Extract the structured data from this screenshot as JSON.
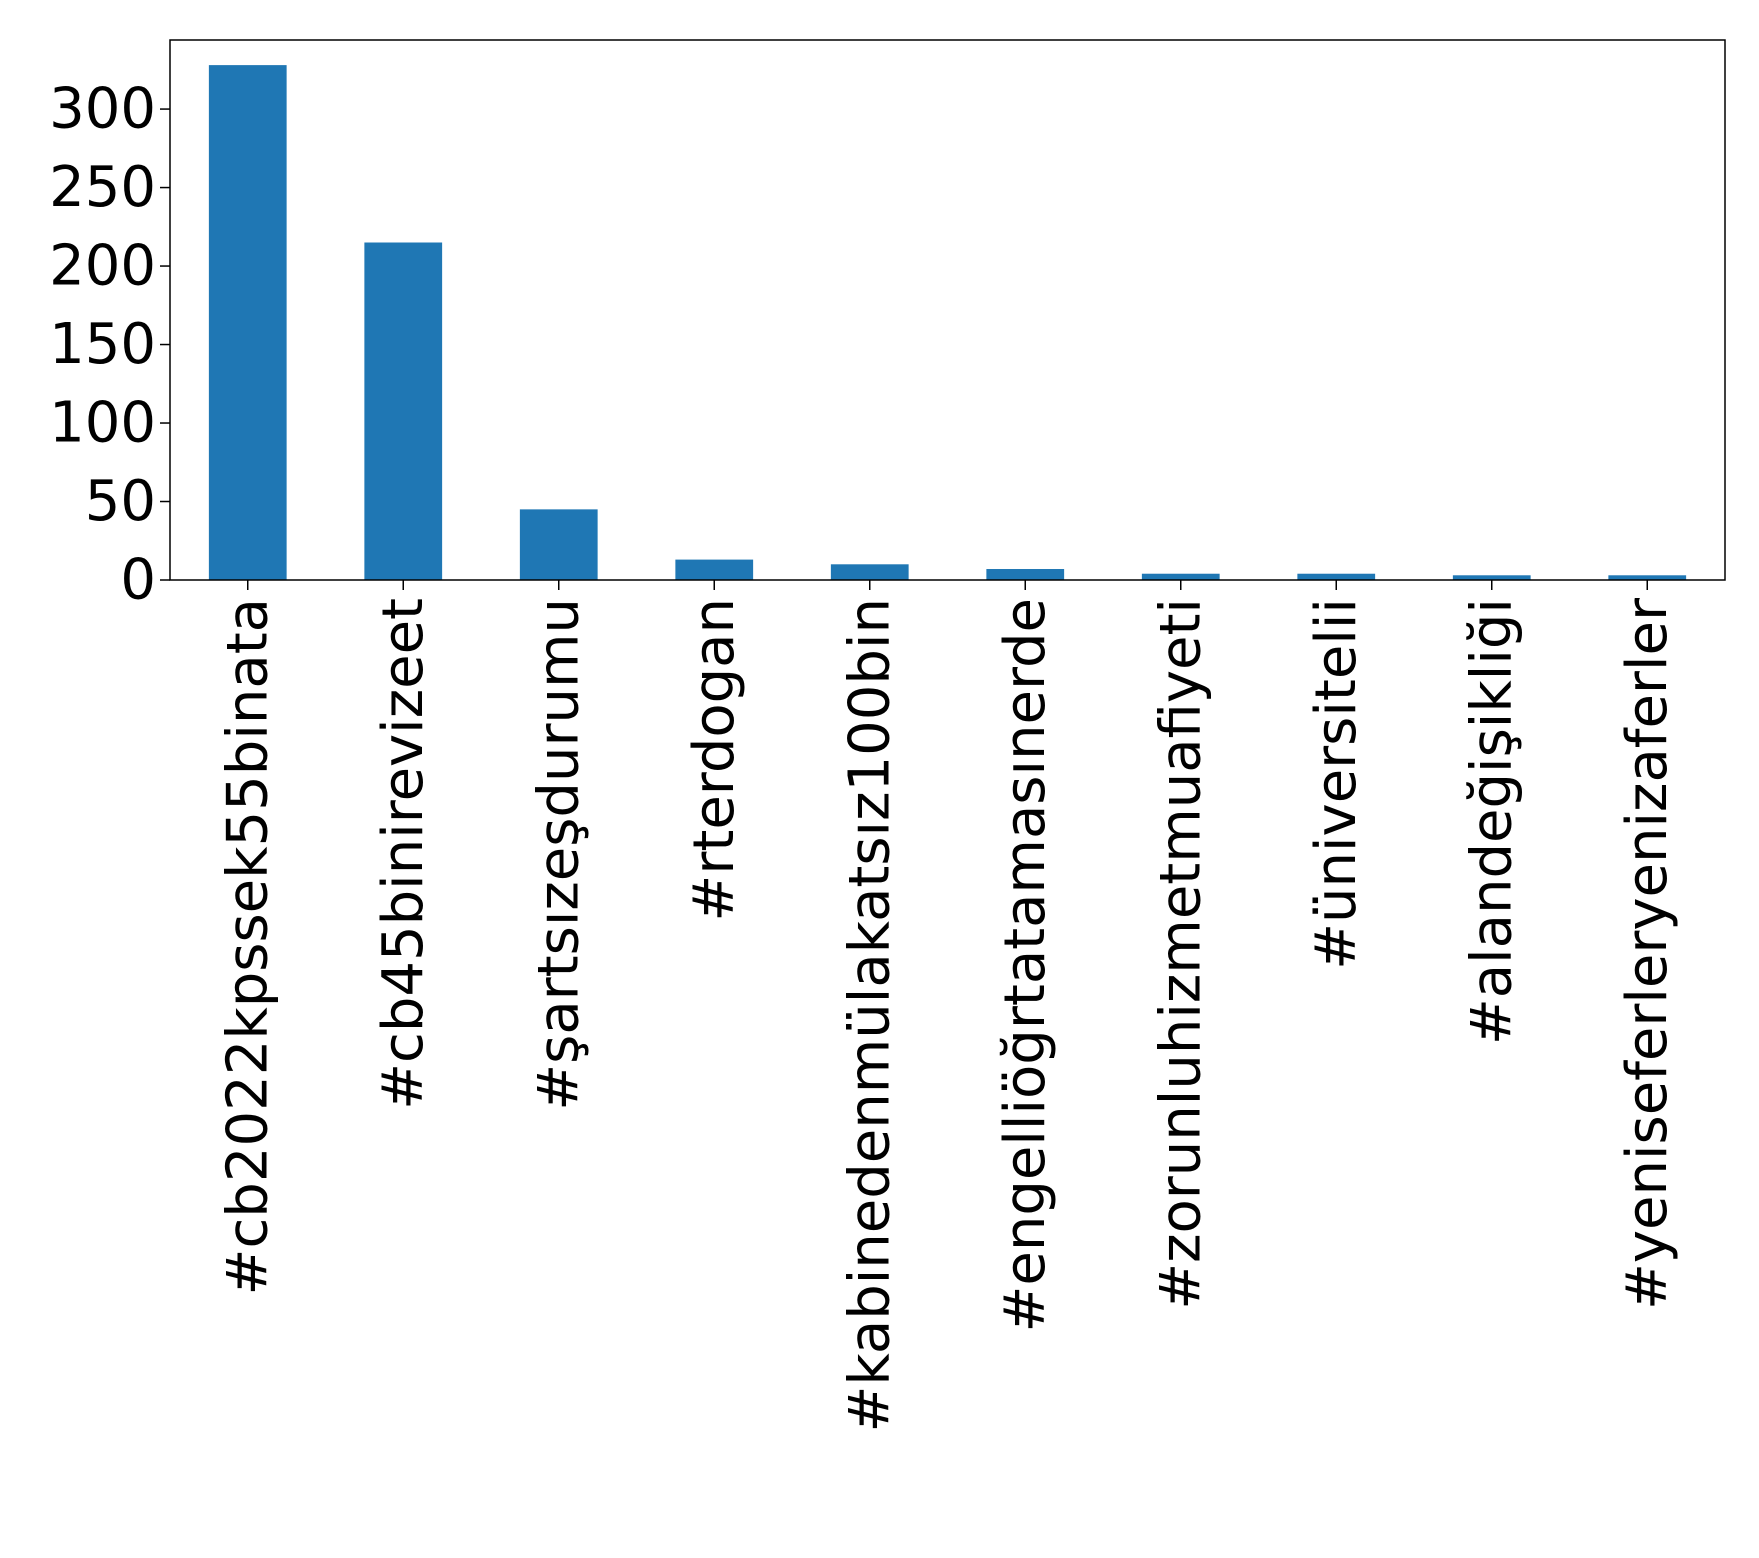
{
  "chart_data": {
    "type": "bar",
    "title": "",
    "xlabel": "",
    "ylabel": "",
    "categories": [
      "#cb2022kpssek55binata",
      "#cb45binirevizeet",
      "#şartsızeşdurumu",
      "#rterdogan",
      "#kabinedenmülakatsız100bin",
      "#engelliöğrtatamasınerde",
      "#zorunluhizmetmuafiyeti",
      "#üniversitelii",
      "#alandeğişikliği",
      "#yeniseferleryenizaferler"
    ],
    "values": [
      328,
      215,
      45,
      13,
      10,
      7,
      4,
      4,
      3,
      3
    ],
    "ylim": [
      0,
      344
    ],
    "yticks": [
      0,
      50,
      100,
      150,
      200,
      250,
      300
    ],
    "ytick_labels": [
      "0",
      "50",
      "100",
      "150",
      "200",
      "250",
      "300"
    ],
    "bar_color": "#1f77b4",
    "grid": false,
    "legend": "none"
  }
}
